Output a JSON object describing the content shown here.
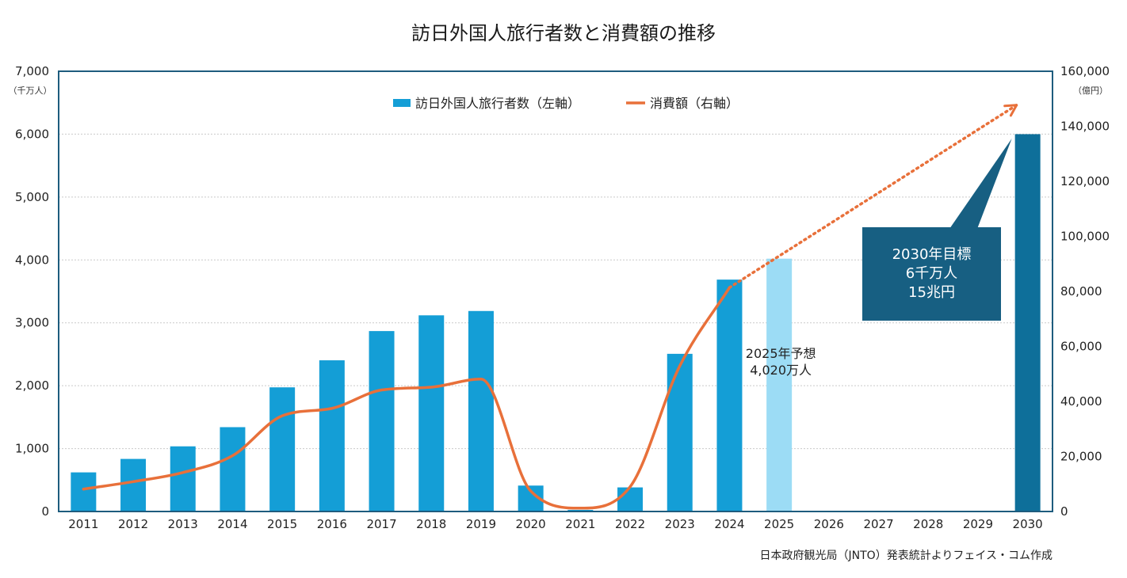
{
  "chart_data": {
    "type": "bar",
    "title": "訪日外国人旅行者数と消費額の推移",
    "source_note": "日本政府観光局（JNTO）発表統計よりフェイス・コム作成",
    "left_unit": "（千万人）",
    "right_unit": "（億円）",
    "categories": [
      "2011",
      "2012",
      "2013",
      "2014",
      "2015",
      "2016",
      "2017",
      "2018",
      "2019",
      "2020",
      "2021",
      "2022",
      "2023",
      "2024",
      "2025",
      "2026",
      "2027",
      "2028",
      "2029",
      "2030"
    ],
    "left_ticks": [
      "0",
      "1,000",
      "2,000",
      "3,000",
      "4,000",
      "5,000",
      "6,000",
      "7,000"
    ],
    "right_ticks": [
      "0",
      "20,000",
      "40,000",
      "60,000",
      "80,000",
      "100,000",
      "120,000",
      "140,000",
      "160,000"
    ],
    "ylim_left": [
      0,
      7000
    ],
    "ylim_right": [
      0,
      160000
    ],
    "grid": true,
    "legend_position": "top-center",
    "series": [
      {
        "name": "訪日外国人旅行者数（左軸）",
        "axis": "left",
        "kind": "bar",
        "color": "#149ED6",
        "values": [
          622,
          836,
          1036,
          1341,
          1974,
          2404,
          2869,
          3119,
          3188,
          412,
          25,
          383,
          2507,
          3687,
          4020,
          null,
          null,
          null,
          null,
          6000
        ],
        "highlight": {
          "2025": "#9CDCF5",
          "2030": "#0E6F9A"
        }
      },
      {
        "name": "消費額（右軸）",
        "axis": "right",
        "kind": "line",
        "color": "#E8703A",
        "values": [
          8135,
          10846,
          14167,
          20278,
          34771,
          37476,
          44162,
          45189,
          48135,
          7446,
          1208,
          8987,
          52923,
          81395,
          null,
          null,
          null,
          null,
          null,
          null
        ],
        "target": {
          "from": "2024",
          "value": 150000
        }
      }
    ],
    "annotations": [
      {
        "target": "2025",
        "lines": [
          "2025年予想",
          "4,020万人"
        ]
      },
      {
        "target": "2030",
        "lines": [
          "2030年目標",
          "6千万人",
          "15兆円"
        ],
        "fill": "#175F82"
      }
    ]
  }
}
